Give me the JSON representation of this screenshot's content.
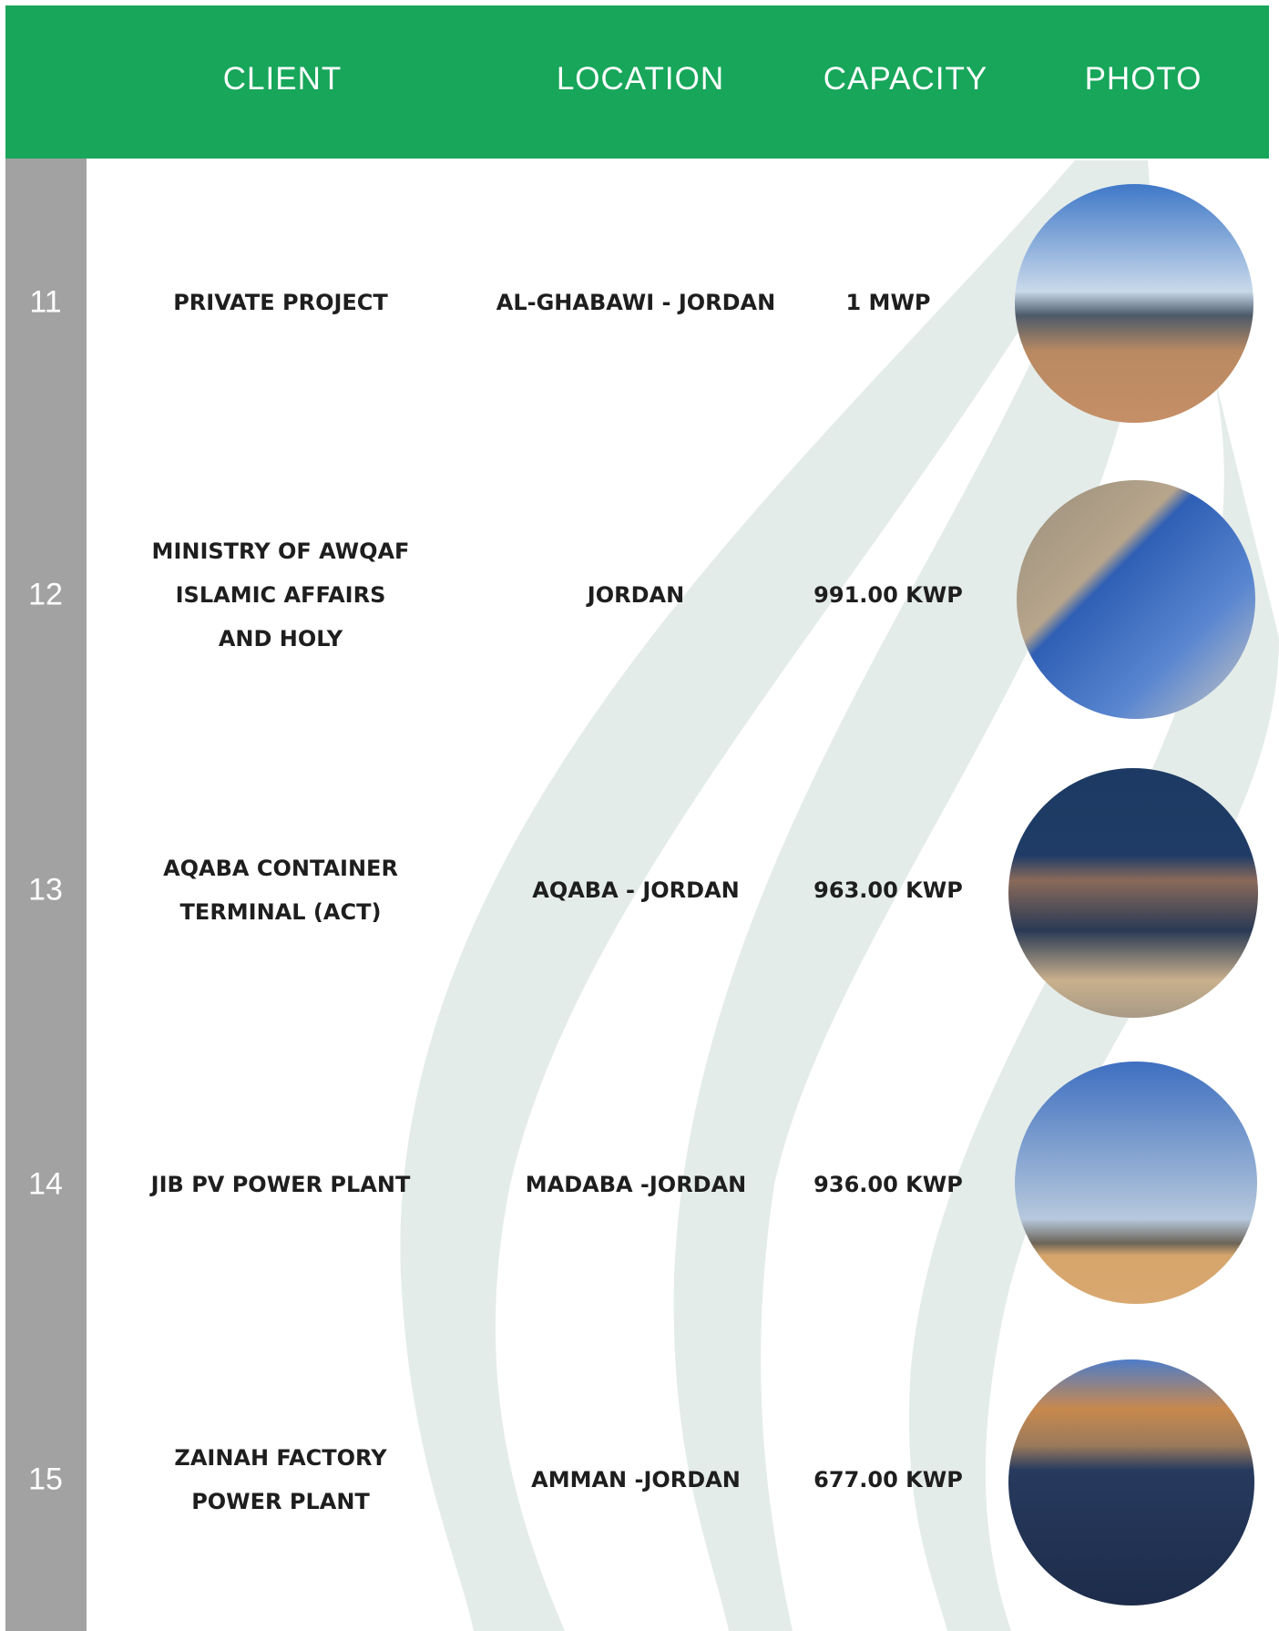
{
  "table": {
    "headers": [
      "CLIENT",
      "LOCATION",
      "CAPACITY",
      "PHOTO"
    ],
    "rows": [
      {
        "number": "11",
        "client": [
          "PRIVATE PROJECT"
        ],
        "location": "AL-GHABAWI - JORDAN",
        "capacity": "1 MWP"
      },
      {
        "number": "12",
        "client": [
          "MINISTRY OF AWQAF",
          "ISLAMIC AFFAIRS",
          "AND HOLY"
        ],
        "location": "JORDAN",
        "capacity": "991.00 KWP"
      },
      {
        "number": "13",
        "client": [
          "AQABA CONTAINER",
          "TERMINAL (ACT)"
        ],
        "location": "AQABA - JORDAN",
        "capacity": "963.00 KWP"
      },
      {
        "number": "14",
        "client": [
          "JIB PV POWER PLANT"
        ],
        "location": "MADABA -JORDAN",
        "capacity": "936.00 KWP"
      },
      {
        "number": "15",
        "client": [
          "ZAINAH FACTORY",
          "POWER PLANT"
        ],
        "location": "AMMAN -JORDAN",
        "capacity": "677.00 KWP"
      }
    ]
  }
}
